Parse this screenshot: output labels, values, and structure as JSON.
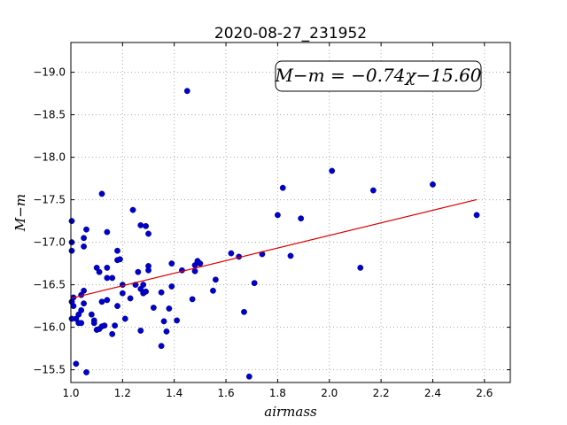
{
  "chart_data": {
    "type": "scatter",
    "title": "2020-08-27_231952",
    "xlabel": "airmass",
    "ylabel": "M−m",
    "xlim": [
      1.0,
      2.7
    ],
    "ylim": [
      -19.35,
      -15.35
    ],
    "y_inverted": true,
    "grid": true,
    "x_ticks": [
      "1.0",
      "1.2",
      "1.4",
      "1.6",
      "1.8",
      "2.0",
      "2.2",
      "2.4",
      "2.6"
    ],
    "y_ticks": [
      "−15.5",
      "−16.0",
      "−16.5",
      "−17.0",
      "−17.5",
      "−18.0",
      "−18.5",
      "−19.0"
    ],
    "annotation": "M−m = −0.74χ−15.60",
    "colors": {
      "points": "#0000cc",
      "fit": "#dd0000",
      "grid": "#aaaaaa"
    },
    "fit_line": {
      "slope": -0.74,
      "intercept": -15.6,
      "x_range": [
        1.0,
        2.57
      ]
    },
    "series": [
      {
        "points": [
          [
            1.0,
            -16.1
          ],
          [
            1.0,
            -16.3
          ],
          [
            1.0,
            -16.9
          ],
          [
            1.0,
            -17.0
          ],
          [
            1.0,
            -17.25
          ],
          [
            1.01,
            -16.35
          ],
          [
            1.01,
            -16.25
          ],
          [
            1.02,
            -16.1
          ],
          [
            1.02,
            -15.57
          ],
          [
            1.03,
            -16.05
          ],
          [
            1.03,
            -16.15
          ],
          [
            1.04,
            -16.05
          ],
          [
            1.04,
            -16.2
          ],
          [
            1.04,
            -16.38
          ],
          [
            1.05,
            -16.28
          ],
          [
            1.05,
            -16.43
          ],
          [
            1.05,
            -16.95
          ],
          [
            1.05,
            -17.05
          ],
          [
            1.06,
            -15.47
          ],
          [
            1.06,
            -17.15
          ],
          [
            1.08,
            -16.15
          ],
          [
            1.09,
            -16.08
          ],
          [
            1.09,
            -16.05
          ],
          [
            1.1,
            -15.97
          ],
          [
            1.1,
            -16.7
          ],
          [
            1.11,
            -15.98
          ],
          [
            1.11,
            -16.65
          ],
          [
            1.12,
            -16.3
          ],
          [
            1.12,
            -16.01
          ],
          [
            1.12,
            -17.57
          ],
          [
            1.13,
            -16.02
          ],
          [
            1.14,
            -16.32
          ],
          [
            1.14,
            -16.58
          ],
          [
            1.14,
            -16.7
          ],
          [
            1.14,
            -17.12
          ],
          [
            1.16,
            -15.92
          ],
          [
            1.16,
            -16.58
          ],
          [
            1.17,
            -16.02
          ],
          [
            1.18,
            -16.25
          ],
          [
            1.18,
            -16.79
          ],
          [
            1.18,
            -16.9
          ],
          [
            1.19,
            -16.8
          ],
          [
            1.2,
            -16.4
          ],
          [
            1.2,
            -16.5
          ],
          [
            1.21,
            -16.1
          ],
          [
            1.23,
            -16.34
          ],
          [
            1.24,
            -17.38
          ],
          [
            1.25,
            -16.5
          ],
          [
            1.26,
            -16.65
          ],
          [
            1.27,
            -17.2
          ],
          [
            1.27,
            -15.96
          ],
          [
            1.27,
            -16.45
          ],
          [
            1.28,
            -16.4
          ],
          [
            1.28,
            -16.5
          ],
          [
            1.29,
            -16.42
          ],
          [
            1.29,
            -17.19
          ],
          [
            1.3,
            -17.1
          ],
          [
            1.3,
            -16.72
          ],
          [
            1.3,
            -16.67
          ],
          [
            1.32,
            -16.23
          ],
          [
            1.35,
            -16.41
          ],
          [
            1.35,
            -15.78
          ],
          [
            1.36,
            -16.07
          ],
          [
            1.37,
            -15.95
          ],
          [
            1.38,
            -16.22
          ],
          [
            1.39,
            -16.48
          ],
          [
            1.39,
            -16.75
          ],
          [
            1.41,
            -16.08
          ],
          [
            1.43,
            -16.67
          ],
          [
            1.45,
            -18.78
          ],
          [
            1.47,
            -16.33
          ],
          [
            1.48,
            -16.73
          ],
          [
            1.48,
            -16.66
          ],
          [
            1.49,
            -16.78
          ],
          [
            1.5,
            -16.75
          ],
          [
            1.55,
            -16.43
          ],
          [
            1.56,
            -16.56
          ],
          [
            1.62,
            -16.87
          ],
          [
            1.65,
            -16.83
          ],
          [
            1.67,
            -16.18
          ],
          [
            1.69,
            -15.42
          ],
          [
            1.71,
            -16.52
          ],
          [
            1.74,
            -16.86
          ],
          [
            1.8,
            -17.32
          ],
          [
            1.82,
            -17.64
          ],
          [
            1.85,
            -16.84
          ],
          [
            1.89,
            -17.28
          ],
          [
            2.01,
            -17.84
          ],
          [
            2.12,
            -16.7
          ],
          [
            2.17,
            -17.61
          ],
          [
            2.4,
            -17.68
          ],
          [
            2.57,
            -17.32
          ]
        ]
      }
    ]
  }
}
